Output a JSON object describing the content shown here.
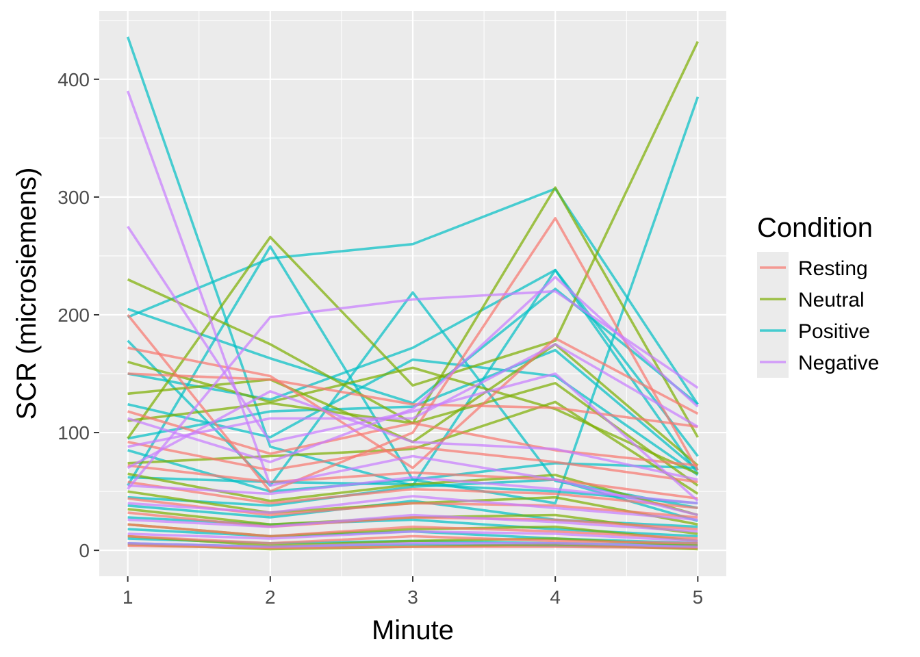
{
  "chart_data": {
    "type": "line",
    "xlabel": "Minute",
    "ylabel": "SCR (microsiemens)",
    "x": [
      1,
      2,
      3,
      4,
      5
    ],
    "xlim": [
      0.8,
      5.2
    ],
    "ylim": [
      -22,
      458
    ],
    "x_ticks": [
      1,
      2,
      3,
      4,
      5
    ],
    "y_ticks": [
      0,
      100,
      200,
      300,
      400
    ],
    "grid": true,
    "legend": {
      "title": "Condition",
      "position": "right"
    },
    "conditions": [
      {
        "name": "Resting",
        "color": "#F8766D"
      },
      {
        "name": "Neutral",
        "color": "#7CAE00"
      },
      {
        "name": "Positive",
        "color": "#00BFC4"
      },
      {
        "name": "Negative",
        "color": "#C77CFF"
      }
    ],
    "series": [
      {
        "condition": "Positive",
        "values": [
          436,
          88,
          55,
          238,
          65
        ]
      },
      {
        "condition": "Positive",
        "values": [
          198,
          248,
          260,
          307,
          124
        ]
      },
      {
        "condition": "Positive",
        "values": [
          55,
          258,
          60,
          40,
          385
        ]
      },
      {
        "condition": "Positive",
        "values": [
          205,
          163,
          125,
          222,
          124
        ]
      },
      {
        "condition": "Positive",
        "values": [
          178,
          55,
          219,
          59,
          36
        ]
      },
      {
        "condition": "Positive",
        "values": [
          150,
          128,
          172,
          238,
          80
        ]
      },
      {
        "condition": "Positive",
        "values": [
          124,
          96,
          162,
          148,
          64
        ]
      },
      {
        "condition": "Positive",
        "values": [
          95,
          118,
          122,
          170,
          68
        ]
      },
      {
        "condition": "Positive",
        "values": [
          85,
          50,
          60,
          74,
          70
        ]
      },
      {
        "condition": "Positive",
        "values": [
          62,
          58,
          56,
          50,
          40
        ]
      },
      {
        "condition": "Positive",
        "values": [
          45,
          38,
          54,
          60,
          25
        ]
      },
      {
        "condition": "Positive",
        "values": [
          38,
          28,
          42,
          26,
          20
        ]
      },
      {
        "condition": "Positive",
        "values": [
          28,
          22,
          26,
          18,
          12
        ]
      },
      {
        "condition": "Positive",
        "values": [
          18,
          12,
          16,
          10,
          6
        ]
      },
      {
        "condition": "Positive",
        "values": [
          10,
          6,
          8,
          6,
          4
        ]
      },
      {
        "condition": "Positive",
        "values": [
          6,
          3,
          5,
          4,
          2
        ]
      },
      {
        "condition": "Neutral",
        "values": [
          230,
          175,
          108,
          308,
          96
        ]
      },
      {
        "condition": "Neutral",
        "values": [
          95,
          266,
          140,
          178,
          432
        ]
      },
      {
        "condition": "Neutral",
        "values": [
          160,
          126,
          155,
          120,
          65
        ]
      },
      {
        "condition": "Neutral",
        "values": [
          133,
          145,
          92,
          175,
          72
        ]
      },
      {
        "condition": "Neutral",
        "values": [
          110,
          125,
          108,
          142,
          55
        ]
      },
      {
        "condition": "Neutral",
        "values": [
          74,
          80,
          86,
          126,
          48
        ]
      },
      {
        "condition": "Neutral",
        "values": [
          65,
          42,
          56,
          64,
          30
        ]
      },
      {
        "condition": "Neutral",
        "values": [
          50,
          32,
          40,
          45,
          22
        ]
      },
      {
        "condition": "Neutral",
        "values": [
          35,
          22,
          28,
          30,
          14
        ]
      },
      {
        "condition": "Neutral",
        "values": [
          22,
          12,
          18,
          20,
          8
        ]
      },
      {
        "condition": "Neutral",
        "values": [
          12,
          4,
          8,
          10,
          4
        ]
      },
      {
        "condition": "Neutral",
        "values": [
          5,
          1,
          3,
          5,
          1
        ]
      },
      {
        "condition": "Resting",
        "values": [
          200,
          50,
          100,
          282,
          68
        ]
      },
      {
        "condition": "Resting",
        "values": [
          172,
          148,
          70,
          180,
          116
        ]
      },
      {
        "condition": "Resting",
        "values": [
          150,
          145,
          124,
          121,
          105
        ]
      },
      {
        "condition": "Resting",
        "values": [
          118,
          82,
          108,
          85,
          72
        ]
      },
      {
        "condition": "Resting",
        "values": [
          92,
          68,
          88,
          75,
          58
        ]
      },
      {
        "condition": "Resting",
        "values": [
          72,
          58,
          66,
          60,
          44
        ]
      },
      {
        "condition": "Resting",
        "values": [
          58,
          40,
          52,
          48,
          36
        ]
      },
      {
        "condition": "Resting",
        "values": [
          44,
          30,
          40,
          38,
          28
        ]
      },
      {
        "condition": "Resting",
        "values": [
          32,
          20,
          28,
          26,
          18
        ]
      },
      {
        "condition": "Resting",
        "values": [
          22,
          12,
          20,
          16,
          10
        ]
      },
      {
        "condition": "Resting",
        "values": [
          12,
          6,
          12,
          8,
          6
        ]
      },
      {
        "condition": "Resting",
        "values": [
          4,
          2,
          3,
          3,
          2
        ]
      },
      {
        "condition": "Negative",
        "values": [
          390,
          55,
          80,
          60,
          30
        ]
      },
      {
        "condition": "Negative",
        "values": [
          275,
          92,
          118,
          150,
          42
        ]
      },
      {
        "condition": "Negative",
        "values": [
          52,
          198,
          213,
          220,
          138
        ]
      },
      {
        "condition": "Negative",
        "values": [
          112,
          75,
          120,
          232,
          122
        ]
      },
      {
        "condition": "Negative",
        "values": [
          88,
          112,
          112,
          175,
          105
        ]
      },
      {
        "condition": "Negative",
        "values": [
          70,
          135,
          92,
          86,
          60
        ]
      },
      {
        "condition": "Negative",
        "values": [
          55,
          48,
          62,
          52,
          40
        ]
      },
      {
        "condition": "Negative",
        "values": [
          40,
          32,
          46,
          36,
          26
        ]
      },
      {
        "condition": "Negative",
        "values": [
          26,
          20,
          30,
          24,
          16
        ]
      },
      {
        "condition": "Negative",
        "values": [
          14,
          10,
          16,
          14,
          8
        ]
      },
      {
        "condition": "Negative",
        "values": [
          6,
          3,
          6,
          6,
          3
        ]
      }
    ]
  }
}
